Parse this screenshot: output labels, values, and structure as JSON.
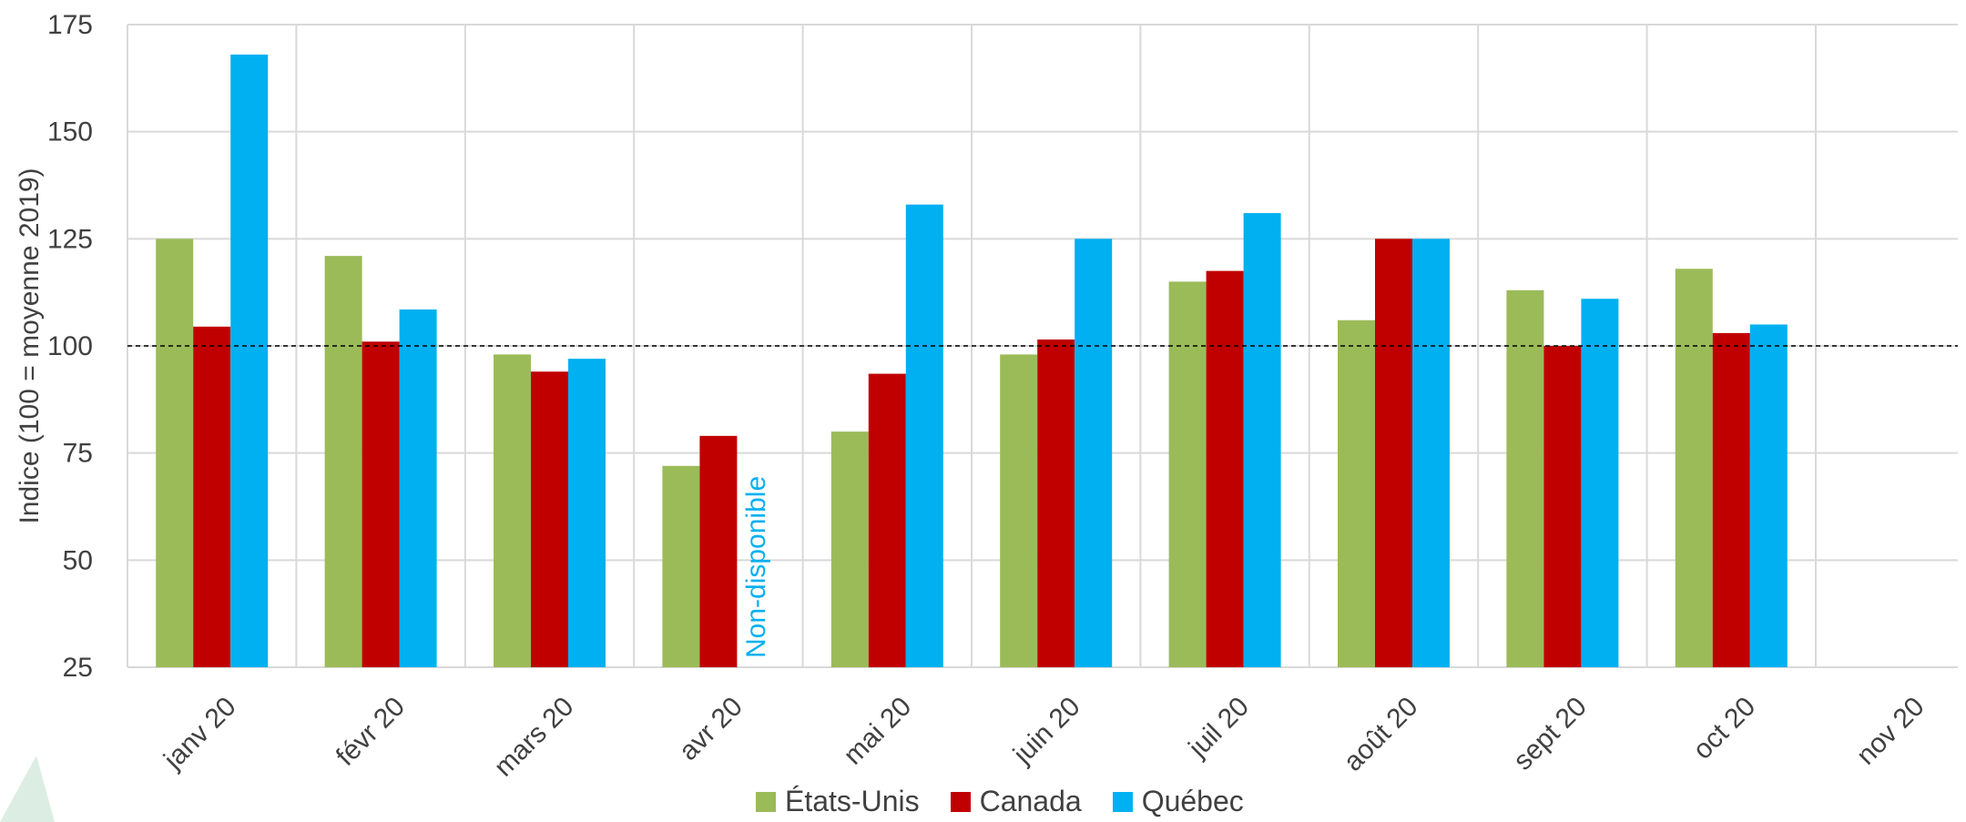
{
  "colors": {
    "etats_unis": "#9BBB59",
    "canada": "#C00000",
    "quebec": "#00B0F0",
    "grid": "#D9D9D9",
    "reference_line": "#000000",
    "text": "#404040"
  },
  "chart_data": {
    "type": "bar",
    "title": "",
    "xlabel": "",
    "ylabel": "Indice (100 = moyenne 2019)",
    "ylim": [
      25,
      175
    ],
    "yticks": [
      25,
      50,
      75,
      100,
      125,
      150,
      175
    ],
    "reference_line": 100,
    "grid": true,
    "legend_position": "bottom",
    "categories": [
      "janv 20",
      "févr 20",
      "mars 20",
      "avr 20",
      "mai 20",
      "juin 20",
      "juil 20",
      "août 20",
      "sept 20",
      "oct 20",
      "nov 20"
    ],
    "series": [
      {
        "name": "États-Unis",
        "color_key": "etats_unis",
        "values": [
          125,
          121,
          98,
          72,
          80,
          98,
          115,
          106,
          113,
          118,
          null
        ]
      },
      {
        "name": "Canada",
        "color_key": "canada",
        "values": [
          104.5,
          101,
          94,
          79,
          93.5,
          101.5,
          117.5,
          125,
          100,
          103,
          null
        ]
      },
      {
        "name": "Québec",
        "color_key": "quebec",
        "values": [
          168,
          108.5,
          97,
          null,
          133,
          125,
          131,
          125,
          111,
          105,
          null
        ]
      }
    ],
    "annotations": [
      {
        "text": "Non-disponible",
        "category": "avr 20",
        "series": "Québec"
      }
    ]
  }
}
